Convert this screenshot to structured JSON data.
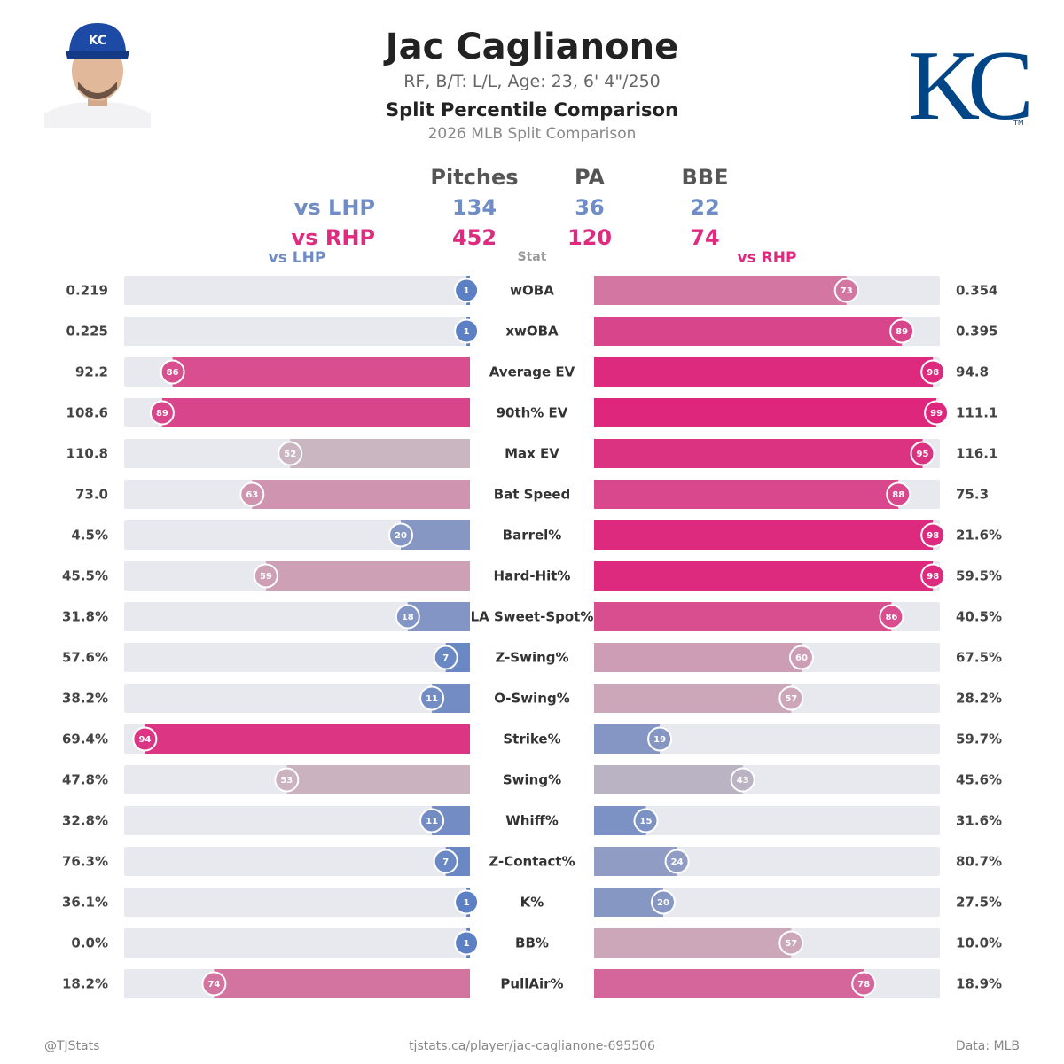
{
  "header": {
    "player_name": "Jac Caglianone",
    "bio": "RF, B/T: L/L, Age: 23, 6' 4\"/250",
    "title": "Split Percentile Comparison",
    "subtitle": "2026 MLB Split Comparison",
    "team_logo_text": "KC",
    "headshot_cap_text": "KC",
    "trademark": "TM"
  },
  "summary": {
    "columns": [
      "Pitches",
      "PA",
      "BBE"
    ],
    "rows": [
      {
        "label": "vs LHP",
        "values": [
          "134",
          "36",
          "22"
        ],
        "color": "#6f8cc6"
      },
      {
        "label": "vs RHP",
        "values": [
          "452",
          "120",
          "74"
        ],
        "color": "#df2a7f"
      }
    ]
  },
  "chart_data": {
    "type": "bar",
    "left_label": "vs LHP",
    "center_label": "Stat",
    "right_label": "vs RHP",
    "percentile_range": [
      0,
      100
    ],
    "rows": [
      {
        "stat": "wOBA",
        "lhp_value": "0.219",
        "lhp_pct": 1,
        "rhp_value": "0.354",
        "rhp_pct": 73
      },
      {
        "stat": "xwOBA",
        "lhp_value": "0.225",
        "lhp_pct": 1,
        "rhp_value": "0.395",
        "rhp_pct": 89
      },
      {
        "stat": "Average EV",
        "lhp_value": "92.2",
        "lhp_pct": 86,
        "rhp_value": "94.8",
        "rhp_pct": 98
      },
      {
        "stat": "90th% EV",
        "lhp_value": "108.6",
        "lhp_pct": 89,
        "rhp_value": "111.1",
        "rhp_pct": 99
      },
      {
        "stat": "Max EV",
        "lhp_value": "110.8",
        "lhp_pct": 52,
        "rhp_value": "116.1",
        "rhp_pct": 95
      },
      {
        "stat": "Bat Speed",
        "lhp_value": "73.0",
        "lhp_pct": 63,
        "rhp_value": "75.3",
        "rhp_pct": 88
      },
      {
        "stat": "Barrel%",
        "lhp_value": "4.5%",
        "lhp_pct": 20,
        "rhp_value": "21.6%",
        "rhp_pct": 98
      },
      {
        "stat": "Hard-Hit%",
        "lhp_value": "45.5%",
        "lhp_pct": 59,
        "rhp_value": "59.5%",
        "rhp_pct": 98
      },
      {
        "stat": "LA Sweet-Spot%",
        "lhp_value": "31.8%",
        "lhp_pct": 18,
        "rhp_value": "40.5%",
        "rhp_pct": 86
      },
      {
        "stat": "Z-Swing%",
        "lhp_value": "57.6%",
        "lhp_pct": 7,
        "rhp_value": "67.5%",
        "rhp_pct": 60
      },
      {
        "stat": "O-Swing%",
        "lhp_value": "38.2%",
        "lhp_pct": 11,
        "rhp_value": "28.2%",
        "rhp_pct": 57
      },
      {
        "stat": "Strike%",
        "lhp_value": "69.4%",
        "lhp_pct": 94,
        "rhp_value": "59.7%",
        "rhp_pct": 19
      },
      {
        "stat": "Swing%",
        "lhp_value": "47.8%",
        "lhp_pct": 53,
        "rhp_value": "45.6%",
        "rhp_pct": 43
      },
      {
        "stat": "Whiff%",
        "lhp_value": "32.8%",
        "lhp_pct": 11,
        "rhp_value": "31.6%",
        "rhp_pct": 15
      },
      {
        "stat": "Z-Contact%",
        "lhp_value": "76.3%",
        "lhp_pct": 7,
        "rhp_value": "80.7%",
        "rhp_pct": 24
      },
      {
        "stat": "K%",
        "lhp_value": "36.1%",
        "lhp_pct": 1,
        "rhp_value": "27.5%",
        "rhp_pct": 20
      },
      {
        "stat": "BB%",
        "lhp_value": "0.0%",
        "lhp_pct": 1,
        "rhp_value": "10.0%",
        "rhp_pct": 57
      },
      {
        "stat": "PullAir%",
        "lhp_value": "18.2%",
        "lhp_pct": 74,
        "rhp_value": "18.9%",
        "rhp_pct": 78
      }
    ]
  },
  "footer": {
    "left": "@TJStats",
    "center": "tjstats.ca/player/jac-caglianone-695506",
    "right": "Data: MLB"
  },
  "colors": {
    "track": "#e8e9ef",
    "low": "#5b7fc4",
    "mid": "#c9bcc3",
    "high": "#de237b",
    "text_dark": "#333333",
    "text_gray": "#777777",
    "team_blue": "#004687"
  }
}
